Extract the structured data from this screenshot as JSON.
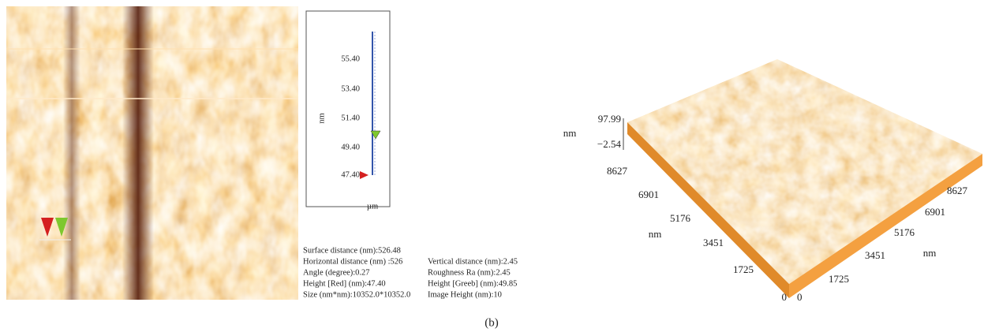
{
  "profile": {
    "y_label": "nm",
    "x_label": "µm",
    "ticks": [
      "55.40",
      "53.40",
      "51.40",
      "49.40",
      "47.40"
    ]
  },
  "measurements": [
    [
      "Surface distance (nm):526.48"
    ],
    [
      "Horizontal distance (nm) :526",
      "Vertical distance (nm):2.45"
    ],
    [
      "Angle (degree):0.27",
      "Roughness Ra (nm):2.45"
    ],
    [
      "Height [Red] (nm):47.40",
      "Height [Greeb] (nm):49.85"
    ],
    [
      "Size (nm*nm):10352.0*10352.0",
      "Image Height (nm):10"
    ]
  ],
  "surface_3d": {
    "z_label": "nm",
    "z_max": "97.99",
    "z_min": "−2.54",
    "left_axis": {
      "label": "nm",
      "ticks": [
        "8627",
        "6901",
        "5176",
        "3451",
        "1725",
        "0"
      ]
    },
    "right_axis": {
      "label": "nm",
      "ticks": [
        "8627",
        "6901",
        "5176",
        "3451",
        "1725",
        "0"
      ]
    }
  },
  "caption": "(b)"
}
